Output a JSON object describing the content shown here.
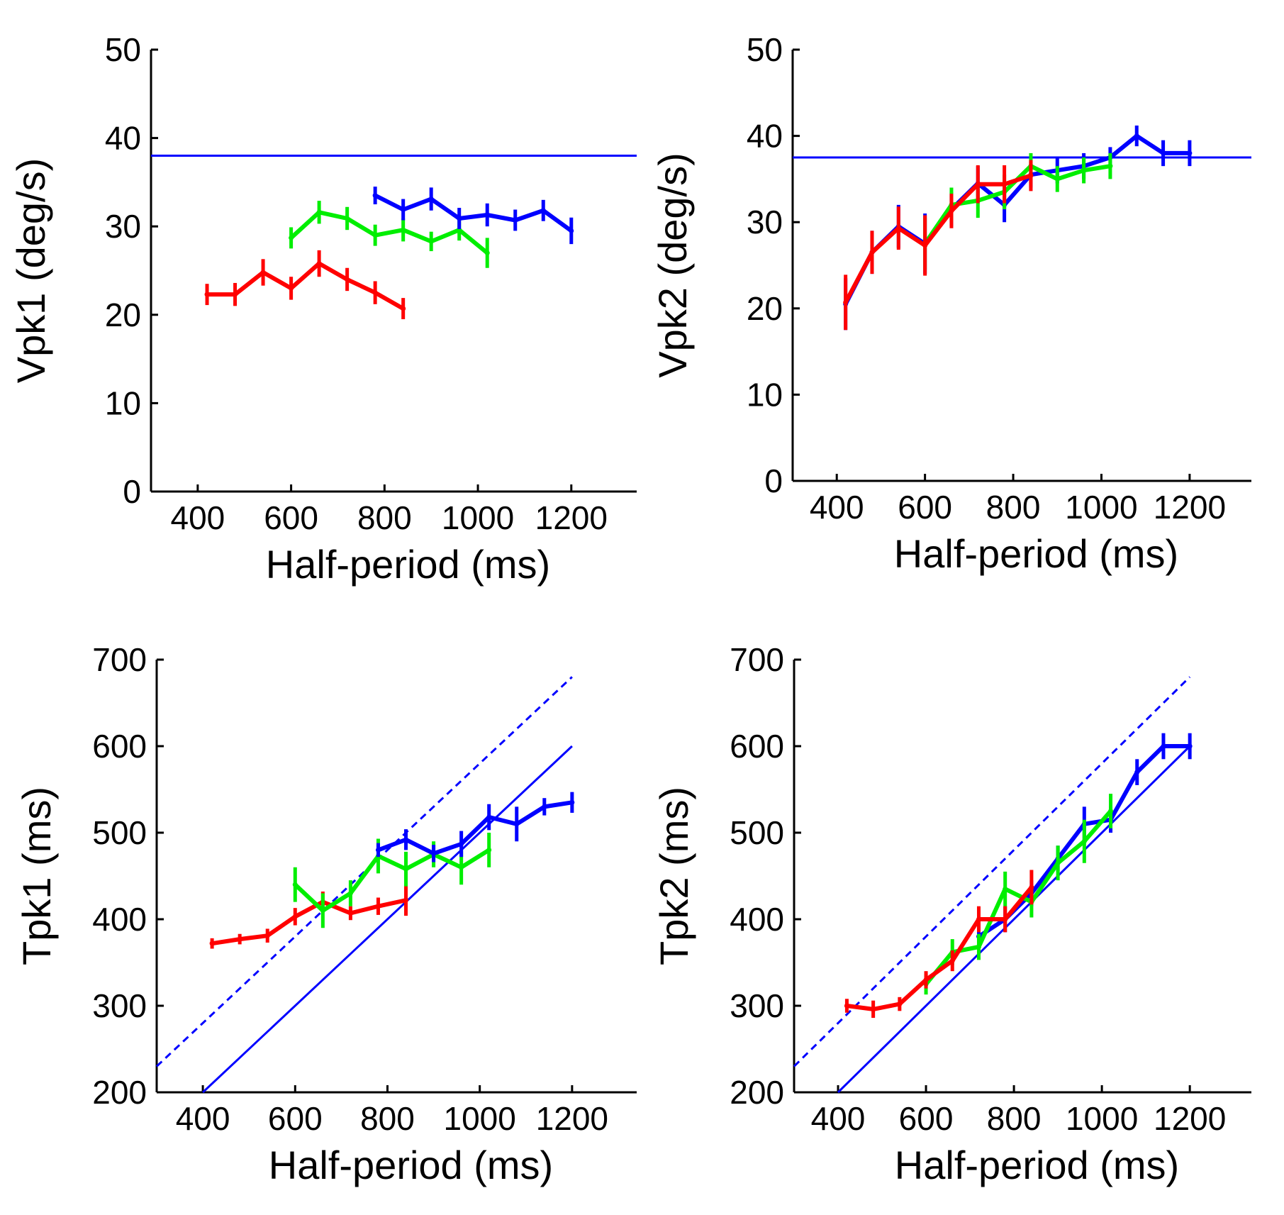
{
  "colors": {
    "red": "#ff0000",
    "green": "#00ee00",
    "blue": "#0000ff",
    "axis": "#000000"
  },
  "chart_data": [
    {
      "id": "vpk1",
      "type": "line",
      "title": "",
      "xlabel": "Half-period (ms)",
      "ylabel": "Vpk1 (deg/s)",
      "xlim": [
        300,
        1340
      ],
      "ylim": [
        0,
        50
      ],
      "xticks": [
        "400",
        "600",
        "800",
        "1000",
        "1200"
      ],
      "xtick_values": [
        400,
        600,
        800,
        1000,
        1200
      ],
      "yticks": [
        "0",
        "10",
        "20",
        "30",
        "40",
        "50"
      ],
      "ytick_values": [
        0,
        10,
        20,
        30,
        40,
        50
      ],
      "reference_lines": [
        {
          "name": "blue-horizontal",
          "color": "blue",
          "style": "solid",
          "points": [
            [
              300,
              38
            ],
            [
              1340,
              38
            ]
          ]
        }
      ],
      "series": [
        {
          "name": "red",
          "color": "red",
          "x": [
            420,
            480,
            540,
            600,
            660,
            720,
            780,
            840
          ],
          "y": [
            22.3,
            22.3,
            24.8,
            23.0,
            25.8,
            24.0,
            22.5,
            20.7
          ],
          "err": [
            1.2,
            1.3,
            1.5,
            1.3,
            1.5,
            1.3,
            1.3,
            1.2
          ]
        },
        {
          "name": "green",
          "color": "green",
          "x": [
            600,
            660,
            720,
            780,
            840,
            900,
            960,
            1020
          ],
          "y": [
            28.7,
            31.6,
            30.9,
            29.0,
            29.6,
            28.3,
            29.6,
            27.0
          ],
          "err": [
            1.2,
            1.3,
            1.3,
            1.2,
            1.3,
            1.1,
            1.2,
            1.7
          ]
        },
        {
          "name": "blue",
          "color": "blue",
          "x": [
            780,
            840,
            900,
            960,
            1020,
            1080,
            1140,
            1200
          ],
          "y": [
            33.5,
            31.9,
            33.1,
            30.9,
            31.3,
            30.7,
            31.8,
            29.5
          ],
          "err": [
            1.0,
            1.2,
            1.3,
            1.2,
            1.3,
            1.2,
            1.2,
            1.5
          ]
        }
      ]
    },
    {
      "id": "vpk2",
      "type": "line",
      "title": "",
      "xlabel": "Half-period (ms)",
      "ylabel": "Vpk2 (deg/s)",
      "xlim": [
        300,
        1340
      ],
      "ylim": [
        0,
        50
      ],
      "xticks": [
        "400",
        "600",
        "800",
        "1000",
        "1200"
      ],
      "xtick_values": [
        400,
        600,
        800,
        1000,
        1200
      ],
      "yticks": [
        "0",
        "10",
        "20",
        "30",
        "40",
        "50"
      ],
      "ytick_values": [
        0,
        10,
        20,
        30,
        40,
        50
      ],
      "reference_lines": [
        {
          "name": "blue-horizontal",
          "color": "blue",
          "style": "solid",
          "points": [
            [
              300,
              37.5
            ],
            [
              1340,
              37.5
            ]
          ]
        }
      ],
      "series": [
        {
          "name": "blue",
          "color": "blue",
          "x": [
            420,
            480,
            540,
            600,
            660,
            720,
            780,
            840,
            900,
            960,
            1020,
            1080,
            1140,
            1200
          ],
          "y": [
            20.5,
            26.5,
            29.5,
            27.5,
            31.5,
            34.5,
            32.0,
            35.5,
            36.0,
            36.5,
            37.5,
            40.0,
            38.0,
            38.0
          ],
          "err": [
            3.0,
            2.5,
            2.5,
            3.5,
            2.0,
            2.0,
            2.0,
            1.5,
            1.5,
            1.5,
            1.2,
            1.2,
            1.5,
            1.5
          ]
        },
        {
          "name": "green",
          "color": "green",
          "x": [
            600,
            660,
            720,
            780,
            840,
            900,
            960,
            1020
          ],
          "y": [
            27.5,
            32.0,
            32.5,
            33.5,
            36.5,
            35.0,
            36.0,
            36.5
          ],
          "err": [
            3.0,
            2.0,
            2.0,
            2.0,
            1.5,
            1.5,
            1.5,
            1.5
          ]
        },
        {
          "name": "red",
          "color": "red",
          "x": [
            420,
            480,
            540,
            600,
            660,
            720,
            780,
            840
          ],
          "y": [
            20.7,
            26.5,
            29.3,
            27.3,
            31.3,
            34.4,
            34.4,
            35.4
          ],
          "err": [
            3.2,
            2.5,
            2.5,
            3.5,
            2.0,
            2.2,
            2.2,
            1.8
          ]
        }
      ]
    },
    {
      "id": "tpk1",
      "type": "line",
      "title": "",
      "xlabel": "Half-period (ms)",
      "ylabel": "Tpk1 (ms)",
      "xlim": [
        300,
        1340
      ],
      "ylim": [
        200,
        700
      ],
      "xticks": [
        "400",
        "600",
        "800",
        "1000",
        "1200"
      ],
      "xtick_values": [
        400,
        600,
        800,
        1000,
        1200
      ],
      "yticks": [
        "200",
        "300",
        "400",
        "500",
        "600",
        "700"
      ],
      "ytick_values": [
        200,
        300,
        400,
        500,
        600,
        700
      ],
      "reference_lines": [
        {
          "name": "identity-solid",
          "color": "blue",
          "style": "solid",
          "points": [
            [
              400,
              200
            ],
            [
              1200,
              600
            ]
          ]
        },
        {
          "name": "identity-dashed",
          "color": "blue",
          "style": "dashed",
          "points": [
            [
              300,
              230
            ],
            [
              1200,
              680
            ]
          ]
        }
      ],
      "series": [
        {
          "name": "red",
          "color": "red",
          "x": [
            420,
            480,
            540,
            600,
            660,
            720,
            780,
            840
          ],
          "y": [
            372,
            377,
            381,
            403,
            420,
            407,
            415,
            422
          ],
          "err": [
            6,
            6,
            8,
            10,
            12,
            8,
            10,
            18
          ]
        },
        {
          "name": "green",
          "color": "green",
          "x": [
            600,
            660,
            720,
            780,
            840,
            900,
            960,
            1020
          ],
          "y": [
            440,
            410,
            430,
            473,
            458,
            475,
            460,
            480
          ],
          "err": [
            20,
            20,
            15,
            20,
            20,
            15,
            20,
            20
          ]
        },
        {
          "name": "blue",
          "color": "blue",
          "x": [
            780,
            840,
            900,
            960,
            1020,
            1080,
            1140,
            1200
          ],
          "y": [
            480,
            492,
            476,
            487,
            518,
            510,
            530,
            535
          ],
          "err": [
            8,
            12,
            10,
            15,
            15,
            20,
            10,
            12
          ]
        }
      ]
    },
    {
      "id": "tpk2",
      "type": "line",
      "title": "",
      "xlabel": "Half-period (ms)",
      "ylabel": "Tpk2 (ms)",
      "xlim": [
        300,
        1340
      ],
      "ylim": [
        200,
        700
      ],
      "xticks": [
        "400",
        "600",
        "800",
        "1000",
        "1200"
      ],
      "xtick_values": [
        400,
        600,
        800,
        1000,
        1200
      ],
      "yticks": [
        "200",
        "300",
        "400",
        "500",
        "600",
        "700"
      ],
      "ytick_values": [
        200,
        300,
        400,
        500,
        600,
        700
      ],
      "reference_lines": [
        {
          "name": "identity-solid",
          "color": "blue",
          "style": "solid",
          "points": [
            [
              400,
              200
            ],
            [
              1200,
              600
            ]
          ]
        },
        {
          "name": "identity-dashed",
          "color": "blue",
          "style": "dashed",
          "points": [
            [
              300,
              230
            ],
            [
              1200,
              680
            ]
          ]
        }
      ],
      "series": [
        {
          "name": "blue",
          "color": "blue",
          "x": [
            720,
            780,
            840,
            900,
            960,
            1020,
            1080,
            1140,
            1200
          ],
          "y": [
            380,
            400,
            430,
            470,
            510,
            515,
            570,
            600,
            600
          ],
          "err": [
            15,
            15,
            15,
            15,
            20,
            15,
            15,
            15,
            15
          ]
        },
        {
          "name": "green",
          "color": "green",
          "x": [
            600,
            660,
            720,
            780,
            840,
            900,
            960,
            1020
          ],
          "y": [
            325,
            362,
            368,
            435,
            420,
            465,
            490,
            525
          ],
          "err": [
            12,
            15,
            15,
            20,
            18,
            20,
            25,
            20
          ]
        },
        {
          "name": "red",
          "color": "red",
          "x": [
            420,
            480,
            540,
            600,
            660,
            720,
            780,
            840
          ],
          "y": [
            300,
            296,
            302,
            330,
            352,
            400,
            400,
            437
          ],
          "err": [
            8,
            10,
            8,
            10,
            12,
            15,
            15,
            20
          ]
        }
      ]
    }
  ]
}
